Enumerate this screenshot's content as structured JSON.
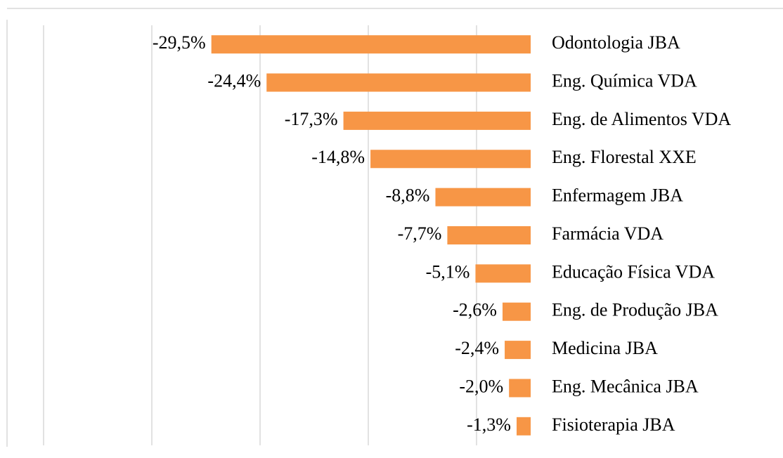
{
  "chart_data": {
    "type": "barh",
    "categories": [
      "Odontologia JBA",
      "Eng. Química VDA",
      "Eng. de Alimentos VDA",
      "Eng. Florestal XXE",
      "Enfermagem JBA",
      "Farmácia VDA",
      "Educação Física VDA",
      "Eng. de Produção JBA",
      "Medicina JBA",
      "Eng. Mecânica JBA",
      "Fisioterapia JBA"
    ],
    "values": [
      -29.5,
      -24.4,
      -17.3,
      -14.8,
      -8.8,
      -7.7,
      -5.1,
      -2.6,
      -2.4,
      -2.0,
      -1.3
    ],
    "value_labels": [
      "-29,5%",
      "-24,4%",
      "-17,3%",
      "-14,8%",
      "-8,8%",
      "-7,7%",
      "-5,1%",
      "-2,6%",
      "-2,4%",
      "-2,0%",
      "-1,3%"
    ],
    "color": "#f79646",
    "xlim": [
      -45,
      0
    ],
    "xticks": [
      -45,
      -35,
      -25,
      -15,
      -5
    ],
    "grid": true
  }
}
